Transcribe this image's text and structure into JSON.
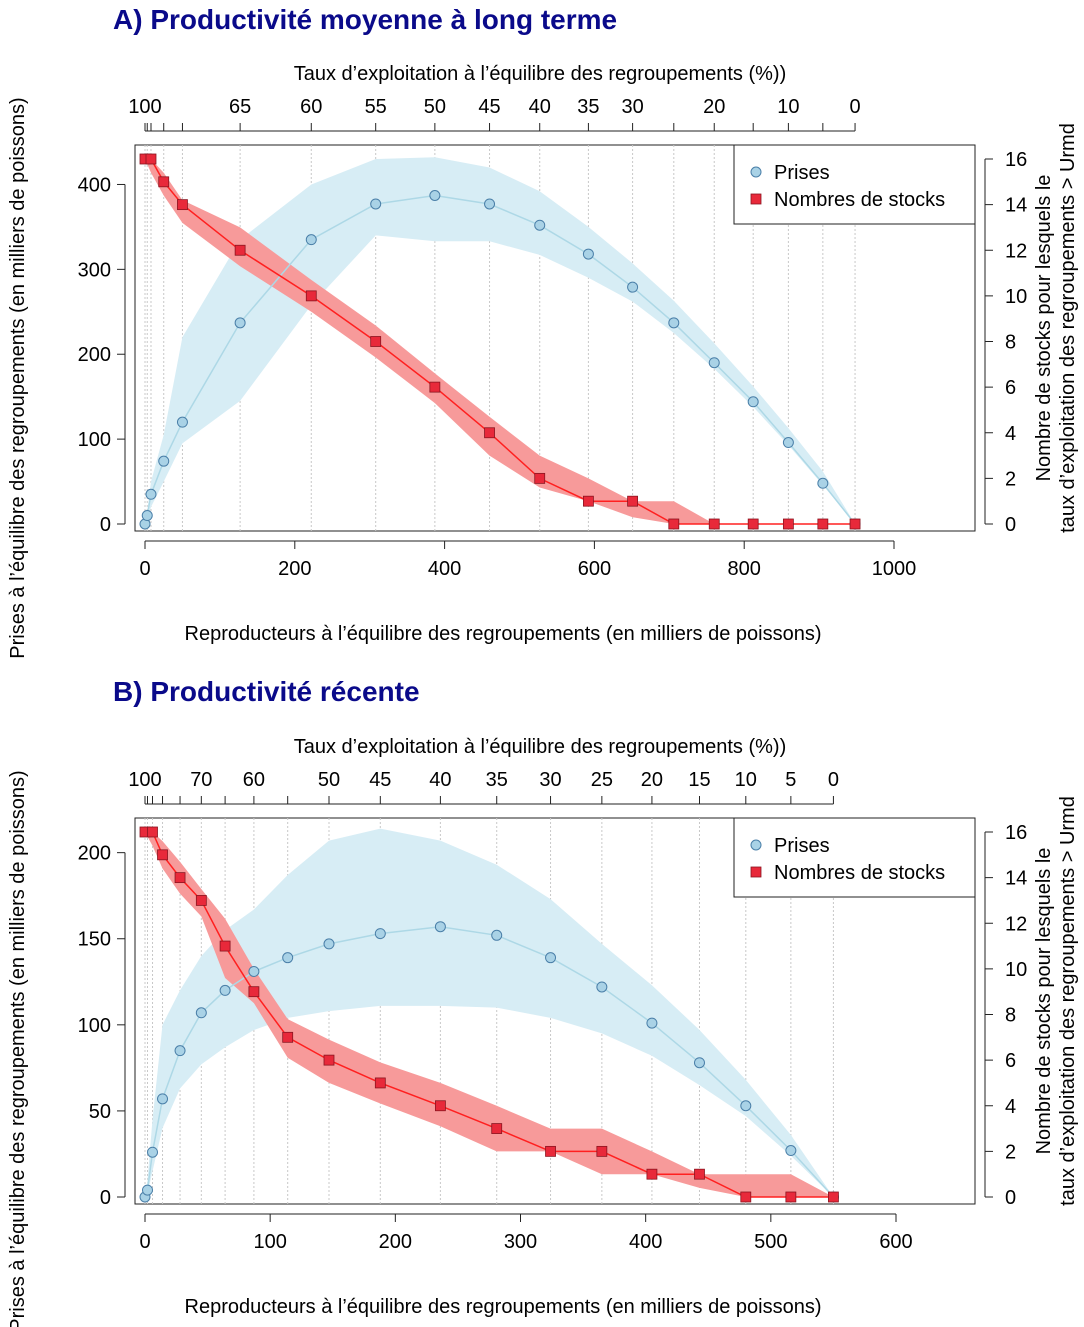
{
  "panels": [
    {
      "title": "A) Productivité moyenne à long terme"
    },
    {
      "title": "B) Productivité récente"
    }
  ],
  "colors": {
    "prises": "#add8e6",
    "prises_band": "#d7edf5",
    "prises_point": "#a9d2e6",
    "prises_edge": "#4a7fa8",
    "stocks": "#ff2020",
    "stocks_band": "#f79a9a",
    "stocks_point": "#e8293a",
    "grid": "#c8c8c8"
  },
  "chart_data": [
    {
      "type": "line",
      "title": "A) Productivité moyenne à long terme",
      "xlabel": "Reproducteurs à l’équilibre des regroupements (en milliers de poissons)",
      "ylabel": "Prises à l’équilibre des regroupements (en milliers de poissons)",
      "y2label": [
        "Nombre de stocks pour lesquels le",
        "taux d’exploitation des regroupements > Urmd"
      ],
      "x3label": "Taux d’exploitation à l’équilibre des regroupements (%))",
      "xlim": [
        0,
        1000
      ],
      "ylim": [
        0,
        430
      ],
      "y2lim": [
        0,
        16
      ],
      "xticks": [
        0,
        200,
        400,
        600,
        800,
        1000
      ],
      "yticks": [
        0,
        100,
        200,
        300,
        400
      ],
      "y2ticks": [
        0,
        2,
        4,
        6,
        8,
        10,
        12,
        14,
        16
      ],
      "grid": true,
      "legend": {
        "position": "top-right",
        "entries": [
          "Prises",
          "Nombres de stocks"
        ]
      },
      "top_axis": [
        {
          "x": 0,
          "label": "100"
        },
        {
          "x": 3,
          "label": ""
        },
        {
          "x": 8,
          "label": ""
        },
        {
          "x": 25,
          "label": ""
        },
        {
          "x": 50,
          "label": ""
        },
        {
          "x": 127,
          "label": "65"
        },
        {
          "x": 222,
          "label": "60"
        },
        {
          "x": 308,
          "label": "55"
        },
        {
          "x": 387,
          "label": "50"
        },
        {
          "x": 460,
          "label": "45"
        },
        {
          "x": 527,
          "label": "40"
        },
        {
          "x": 592,
          "label": "35"
        },
        {
          "x": 651,
          "label": "30"
        },
        {
          "x": 706,
          "label": ""
        },
        {
          "x": 760,
          "label": "20"
        },
        {
          "x": 812,
          "label": ""
        },
        {
          "x": 859,
          "label": "10"
        },
        {
          "x": 905,
          "label": ""
        },
        {
          "x": 948,
          "label": "0"
        }
      ],
      "series": [
        {
          "name": "Prises",
          "x": [
            0,
            3,
            8,
            25,
            50,
            127,
            222,
            308,
            387,
            460,
            527,
            592,
            651,
            706,
            760,
            812,
            859,
            905,
            948
          ],
          "y": [
            0,
            10,
            35,
            74,
            120,
            237,
            335,
            377,
            387,
            377,
            352,
            318,
            279,
            237,
            190,
            144,
            96,
            48,
            0
          ],
          "lower": [
            0,
            5,
            20,
            50,
            95,
            145,
            258,
            340,
            333,
            333,
            317,
            290,
            262,
            225,
            183,
            138,
            93,
            46,
            0
          ],
          "upper": [
            0,
            15,
            50,
            105,
            220,
            335,
            400,
            430,
            432,
            420,
            392,
            350,
            307,
            263,
            213,
            162,
            113,
            62,
            0
          ]
        },
        {
          "name": "Nombres de stocks",
          "x": [
            0,
            8,
            25,
            50,
            127,
            222,
            308,
            387,
            460,
            527,
            592,
            651,
            706,
            760,
            812,
            859,
            905,
            948
          ],
          "y": [
            16,
            16,
            15,
            14,
            12,
            10,
            8,
            6,
            4,
            2,
            1,
            1,
            0,
            0,
            0,
            0,
            0,
            0
          ],
          "lower": [
            16,
            15.4,
            14.4,
            13.2,
            11.3,
            9.3,
            7.3,
            5.3,
            3.0,
            1.6,
            1.0,
            0.3,
            0,
            0,
            0,
            0,
            0,
            0
          ],
          "upper": [
            16,
            16,
            15.4,
            14.2,
            13.0,
            10.7,
            8.7,
            6.6,
            4.7,
            3.0,
            2.0,
            1.0,
            1.0,
            0,
            0,
            0,
            0,
            0
          ]
        }
      ]
    },
    {
      "type": "line",
      "title": "B) Productivité récente",
      "xlabel": "Reproducteurs à l’équilibre des regroupements (en milliers de poissons)",
      "ylabel": "Prises à l’équilibre des regroupements (en milliers de poissons)",
      "y2label": [
        "Nombre de stocks pour lesquels le",
        "taux d’exploitation des regroupements > Urmd"
      ],
      "x3label": "Taux d’exploitation à l’équilibre des regroupements (%))",
      "xlim": [
        0,
        600
      ],
      "ylim": [
        0,
        212
      ],
      "y2lim": [
        0,
        16
      ],
      "xticks": [
        0,
        100,
        200,
        300,
        400,
        500,
        600
      ],
      "yticks": [
        0,
        50,
        100,
        150,
        200
      ],
      "y2ticks": [
        0,
        2,
        4,
        6,
        8,
        10,
        12,
        14,
        16
      ],
      "grid": true,
      "legend": {
        "position": "top-right",
        "entries": [
          "Prises",
          "Nombres de stocks"
        ]
      },
      "top_axis": [
        {
          "x": 0,
          "label": "100"
        },
        {
          "x": 2,
          "label": ""
        },
        {
          "x": 6,
          "label": ""
        },
        {
          "x": 14,
          "label": ""
        },
        {
          "x": 28,
          "label": ""
        },
        {
          "x": 45,
          "label": "70"
        },
        {
          "x": 64,
          "label": ""
        },
        {
          "x": 87,
          "label": "60"
        },
        {
          "x": 114,
          "label": ""
        },
        {
          "x": 147,
          "label": "50"
        },
        {
          "x": 188,
          "label": "45"
        },
        {
          "x": 236,
          "label": "40"
        },
        {
          "x": 281,
          "label": "35"
        },
        {
          "x": 324,
          "label": "30"
        },
        {
          "x": 365,
          "label": "25"
        },
        {
          "x": 405,
          "label": "20"
        },
        {
          "x": 443,
          "label": "15"
        },
        {
          "x": 480,
          "label": "10"
        },
        {
          "x": 516,
          "label": "5"
        },
        {
          "x": 550,
          "label": "0"
        }
      ],
      "series": [
        {
          "name": "Prises",
          "x": [
            0,
            2,
            6,
            14,
            28,
            45,
            64,
            87,
            114,
            147,
            188,
            236,
            281,
            324,
            365,
            405,
            443,
            480,
            516,
            550
          ],
          "y": [
            0,
            4,
            26,
            57,
            85,
            107,
            120,
            131,
            139,
            147,
            153,
            157,
            152,
            139,
            122,
            101,
            78,
            53,
            27,
            0
          ],
          "lower": [
            0,
            2,
            15,
            40,
            63,
            77,
            87,
            97,
            104,
            108,
            111,
            111,
            110,
            104,
            95,
            82,
            65,
            47,
            24,
            0
          ],
          "upper": [
            0,
            10,
            45,
            100,
            120,
            140,
            155,
            167,
            187,
            207,
            214,
            207,
            193,
            173,
            147,
            123,
            97,
            68,
            36,
            0
          ]
        },
        {
          "name": "Nombres de stocks",
          "x": [
            0,
            6,
            14,
            28,
            45,
            64,
            87,
            114,
            147,
            188,
            236,
            281,
            324,
            365,
            405,
            443,
            480,
            516,
            550
          ],
          "y": [
            16,
            16,
            15,
            14,
            13,
            11,
            9,
            7,
            6,
            5,
            4,
            3,
            2,
            2,
            1,
            1,
            0,
            0,
            0
          ],
          "lower": [
            16,
            15.4,
            14.4,
            13.3,
            12.3,
            9.6,
            8.5,
            6.1,
            5.0,
            4.1,
            3.1,
            2.0,
            2.0,
            1.0,
            1.0,
            0.4,
            0,
            0,
            0
          ],
          "upper": [
            16,
            16,
            15.6,
            14.7,
            13.5,
            12.2,
            10.0,
            7.8,
            6.9,
            5.9,
            5.0,
            4.0,
            3.0,
            3.0,
            2.0,
            1.0,
            1.0,
            1.0,
            0
          ]
        }
      ]
    }
  ]
}
